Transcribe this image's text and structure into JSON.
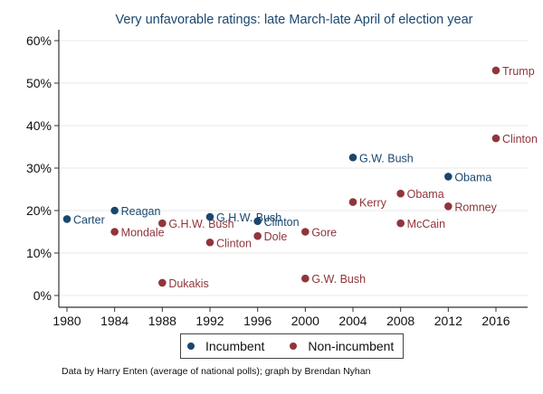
{
  "chart_data": {
    "type": "scatter",
    "title": "Very unfavorable ratings: late March-late April of election year",
    "xlabel": "",
    "ylabel": "",
    "xlim": [
      1979.3,
      2018.6
    ],
    "ylim": [
      0,
      62.5
    ],
    "grid": true,
    "x_ticks": [
      1980,
      1984,
      1988,
      1992,
      1996,
      2000,
      2004,
      2008,
      2012,
      2016
    ],
    "x_tick_labels": [
      "1980",
      "1984",
      "1988",
      "1992",
      "1996",
      "2000",
      "2004",
      "2008",
      "2012",
      "2016"
    ],
    "y_ticks": [
      0,
      10,
      20,
      30,
      40,
      50,
      60
    ],
    "y_tick_labels": [
      "0%",
      "10%",
      "20%",
      "30%",
      "40%",
      "50%",
      "60%"
    ],
    "legend_position": "bottom",
    "series": [
      {
        "name": "Incumbent",
        "color": "#1a476f",
        "points": [
          {
            "x": 1980,
            "y": 18,
            "label": "Carter"
          },
          {
            "x": 1984,
            "y": 20,
            "label": "Reagan"
          },
          {
            "x": 1992,
            "y": 18.5,
            "label": "G.H.W. Bush"
          },
          {
            "x": 1996,
            "y": 17.5,
            "label": "Clinton"
          },
          {
            "x": 2004,
            "y": 32.5,
            "label": "G.W. Bush"
          },
          {
            "x": 2012,
            "y": 28,
            "label": "Obama"
          }
        ]
      },
      {
        "name": "Non-incumbent",
        "color": "#90353b",
        "points": [
          {
            "x": 1984,
            "y": 15,
            "label": "Mondale"
          },
          {
            "x": 1988,
            "y": 17,
            "label": "G.H.W. Bush"
          },
          {
            "x": 1988,
            "y": 3,
            "label": "Dukakis"
          },
          {
            "x": 1992,
            "y": 12.5,
            "label": "Clinton"
          },
          {
            "x": 1996,
            "y": 14,
            "label": "Dole"
          },
          {
            "x": 2000,
            "y": 15,
            "label": "Gore"
          },
          {
            "x": 2000,
            "y": 4,
            "label": "G.W. Bush"
          },
          {
            "x": 2004,
            "y": 22,
            "label": "Kerry"
          },
          {
            "x": 2008,
            "y": 24,
            "label": "Obama"
          },
          {
            "x": 2008,
            "y": 17,
            "label": "McCain"
          },
          {
            "x": 2012,
            "y": 21,
            "label": "Romney"
          },
          {
            "x": 2016,
            "y": 53,
            "label": "Trump"
          },
          {
            "x": 2016,
            "y": 37,
            "label": "Clinton"
          }
        ]
      }
    ]
  },
  "legend": {
    "items": [
      {
        "label": "Incumbent",
        "color": "#1a476f"
      },
      {
        "label": "Non-incumbent",
        "color": "#90353b"
      }
    ]
  },
  "footnote": "Data by Harry Enten (average of national polls); graph by Brendan Nyhan"
}
